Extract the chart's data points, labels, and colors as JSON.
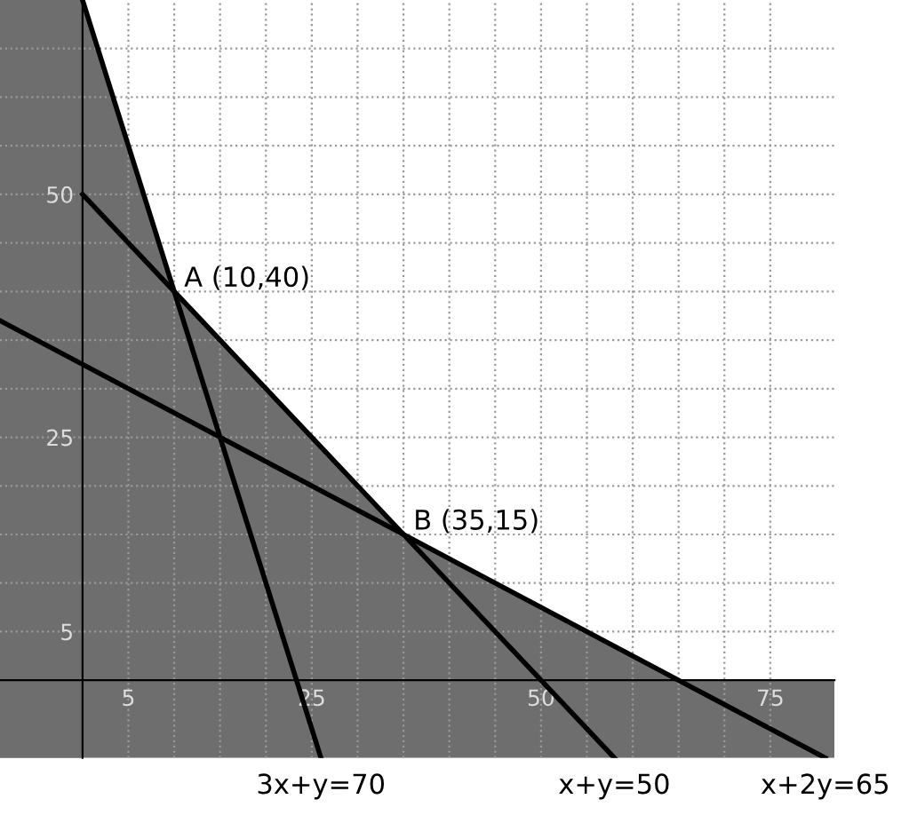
{
  "chart_data": {
    "type": "line",
    "xlim": [
      -9,
      82
    ],
    "ylim": [
      -8,
      70
    ],
    "xticks": [
      5,
      {
        "value": 10,
        "label": null
      },
      {
        "value": 15,
        "label": null
      },
      {
        "value": 20,
        "label": null
      },
      25,
      {
        "value": 30,
        "label": null
      },
      {
        "value": 35,
        "label": null
      },
      {
        "value": 40,
        "label": null
      },
      {
        "value": 45,
        "label": null
      },
      50,
      {
        "value": 55,
        "label": null
      },
      {
        "value": 60,
        "label": null
      },
      {
        "value": 65,
        "label": null
      },
      {
        "value": 70,
        "label": null
      },
      75
    ],
    "yticks": [
      5,
      {
        "value": 10,
        "label": null
      },
      {
        "value": 15,
        "label": null
      },
      {
        "value": 20,
        "label": null
      },
      25,
      {
        "value": 30,
        "label": null
      },
      {
        "value": 35,
        "label": null
      },
      {
        "value": 40,
        "label": null
      },
      {
        "value": 45,
        "label": null
      },
      50,
      {
        "value": 55,
        "label": null
      },
      {
        "value": 60,
        "label": null
      },
      {
        "value": 65,
        "label": null
      }
    ],
    "grid": true,
    "legend": false,
    "line_style": "solid",
    "marker": "none",
    "series": [
      {
        "type": "area",
        "color": "#6e6e6e",
        "x": [
          0,
          10,
          35,
          65
        ],
        "values": [
          70,
          40,
          15,
          0
        ]
      },
      {
        "name": "3x+y=70",
        "color": "#000000",
        "x": [
          0,
          26
        ],
        "values": [
          70,
          -8
        ]
      },
      {
        "name": "x+y=50",
        "color": "#000000",
        "x": [
          0,
          58
        ],
        "values": [
          50,
          -8
        ]
      },
      {
        "name": "x+2y=65",
        "color": "#000000",
        "x": [
          -9,
          81
        ],
        "values": [
          37,
          -8
        ]
      }
    ],
    "bands": [
      {
        "axis": "x",
        "from": -9,
        "to": 0,
        "color": "#6e6e6e"
      },
      {
        "axis": "y",
        "from": -8,
        "to": 0,
        "color": "#6e6e6e"
      }
    ],
    "annotations": [
      {
        "text": "A (10,40)",
        "x": 10,
        "y": 40
      },
      {
        "text": "B (35,15)",
        "x": 35,
        "y": 15
      }
    ]
  }
}
